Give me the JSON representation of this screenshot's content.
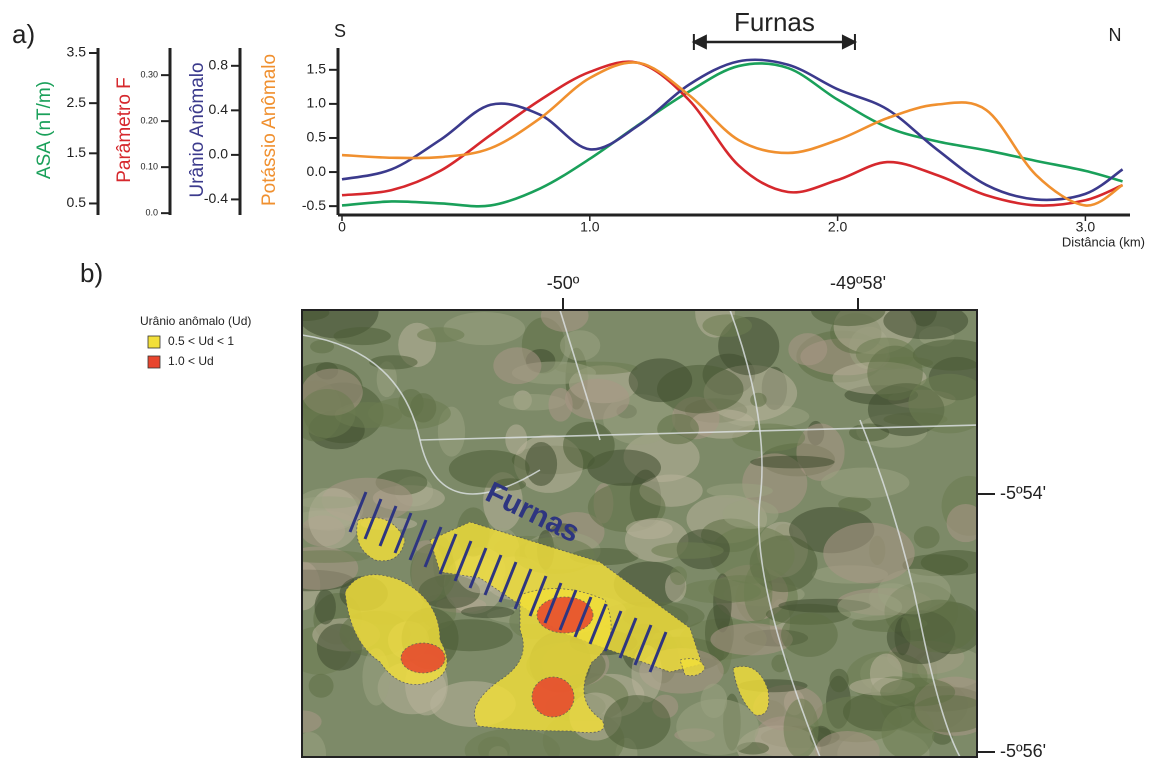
{
  "chart_data": {
    "type": "line",
    "panel_label": "a)",
    "x_label": "Distância (km)",
    "left_label": "S",
    "right_label": "N",
    "annotation": {
      "text": "Furnas",
      "x_range": [
        1.42,
        2.07
      ]
    },
    "x": [
      0,
      0.2,
      0.4,
      0.6,
      0.8,
      1.0,
      1.2,
      1.4,
      1.6,
      1.8,
      2.0,
      2.2,
      2.4,
      2.6,
      2.8,
      3.0,
      3.15
    ],
    "xlim": [
      0,
      3.18
    ],
    "xticks": [
      0,
      {
        "value": 1,
        "label": "1.0"
      },
      {
        "value": 2,
        "label": "2.0"
      },
      {
        "value": 3,
        "label": "3.0"
      }
    ],
    "series": [
      {
        "name": "ASA (nT/m)",
        "color": "#1aa05a",
        "ylim": [
          0.27,
          3.6
        ],
        "yticks": [
          0.5,
          1.5,
          2.5,
          3.5
        ],
        "values": [
          0.46,
          0.54,
          0.5,
          0.46,
          0.8,
          1.39,
          2.08,
          2.73,
          3.24,
          3.2,
          2.57,
          2.02,
          1.74,
          1.56,
          1.35,
          1.15,
          0.94
        ]
      },
      {
        "name": "Parâmetro F",
        "color": "#d6282d",
        "ylim": [
          -0.004,
          0.359
        ],
        "yticks": [
          {
            "value": 0,
            "label": "0.0"
          },
          {
            "value": 0.1,
            "label": "0.10"
          },
          {
            "value": 0.2,
            "label": "0.20"
          },
          {
            "value": 0.3,
            "label": "0.30"
          }
        ],
        "values": [
          0.039,
          0.05,
          0.093,
          0.17,
          0.246,
          0.307,
          0.326,
          0.246,
          0.104,
          0.046,
          0.072,
          0.111,
          0.083,
          0.039,
          0.017,
          0.028,
          0.061
        ]
      },
      {
        "name": "Urânio Anômalo",
        "color": "#3b3a8c",
        "ylim": [
          -0.54,
          0.96
        ],
        "yticks": [
          -0.4,
          {
            "value": 0,
            "label": "0.0"
          },
          0.4,
          0.8
        ],
        "values": [
          -0.22,
          -0.13,
          0.14,
          0.45,
          0.36,
          0.05,
          0.27,
          0.63,
          0.84,
          0.81,
          0.59,
          0.41,
          0.05,
          -0.27,
          -0.4,
          -0.35,
          -0.13
        ]
      },
      {
        "name": "Potássio Anômalo",
        "color": "#f0902f",
        "ylim": [
          -0.63,
          1.82
        ],
        "yticks": [
          -0.5,
          {
            "value": 0,
            "label": "0.0"
          },
          0.5,
          {
            "value": 1,
            "label": "1.0"
          },
          1.5
        ],
        "values": [
          0.25,
          0.21,
          0.22,
          0.35,
          0.79,
          1.38,
          1.6,
          1.13,
          0.47,
          0.28,
          0.47,
          0.79,
          0.99,
          0.91,
          -0.04,
          -0.49,
          -0.19
        ]
      }
    ]
  },
  "map": {
    "panel_label": "b)",
    "feature_label": "Furnas",
    "legend": {
      "title": "Urânio anômalo (Ud)",
      "items": [
        {
          "label": "0.5 < Ud < 1",
          "color": "#f2df3a"
        },
        {
          "label": "1.0 < Ud",
          "color": "#e8452e"
        }
      ]
    },
    "lon_labels": [
      "-50º",
      "-49º58'"
    ],
    "lat_labels": [
      "-5º54'",
      "-5º56'"
    ]
  }
}
